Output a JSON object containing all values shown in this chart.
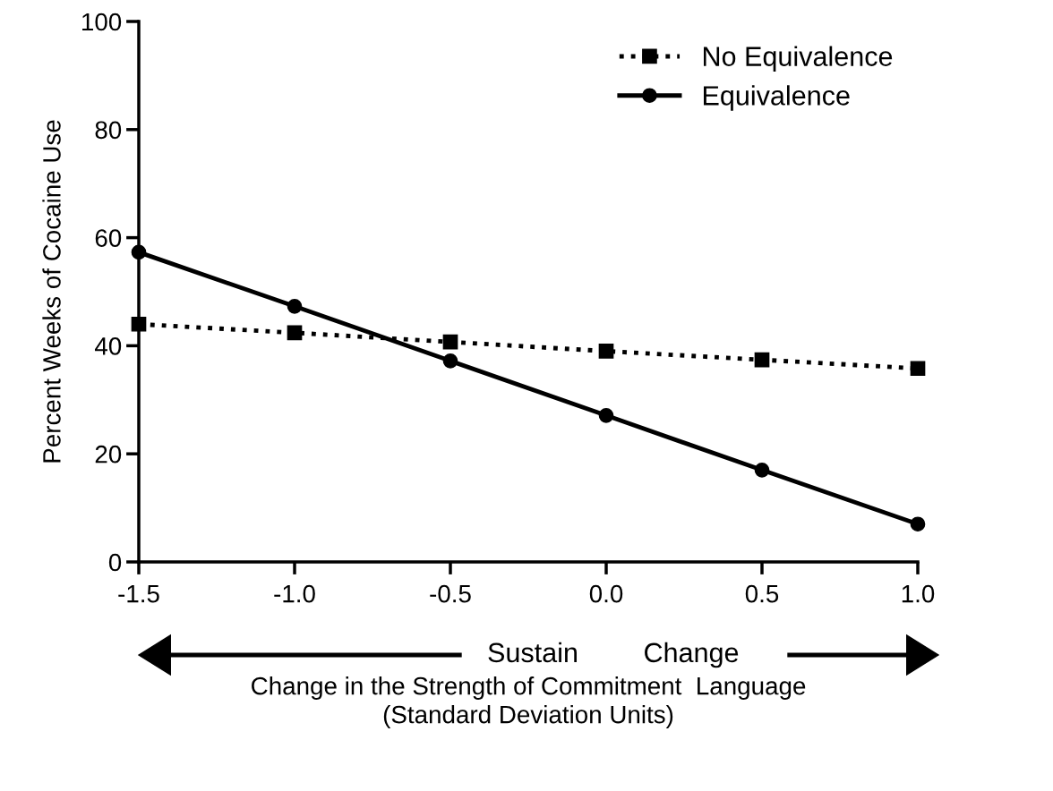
{
  "chart_data": {
    "type": "line",
    "xlabel": "Change in the Strength of Commitment  Language\n(Standard Deviation Units)",
    "ylabel": "Percent Weeks of Cocaine Use",
    "x": [
      -1.5,
      -1.0,
      -0.5,
      0.0,
      0.5,
      1.0
    ],
    "series": [
      {
        "name": "No Equivalence",
        "color": "#000000",
        "values": [
          44,
          42.4,
          40.7,
          39,
          37.4,
          35.8
        ],
        "marker": "square",
        "line_style": "dotted"
      },
      {
        "name": "Equivalence",
        "color": "#000000",
        "values": [
          57.3,
          47.3,
          37.2,
          27.1,
          17,
          7
        ],
        "marker": "circle",
        "line_style": "solid"
      }
    ],
    "xlim": [
      -1.5,
      1.0
    ],
    "xticks": [
      {
        "value": -1.5,
        "label": "-1.5"
      },
      {
        "value": -1.0,
        "label": "-1.0"
      },
      {
        "value": -0.5,
        "label": "-0.5"
      },
      {
        "value": 0.0,
        "label": "0.0"
      },
      {
        "value": 0.5,
        "label": "0.5"
      },
      {
        "value": 1.0,
        "label": "1.0"
      }
    ],
    "ylim": [
      0,
      100
    ],
    "yticks": [
      0,
      20,
      40,
      60,
      80,
      100
    ],
    "annotations": [
      "Sustain",
      "Change"
    ],
    "grid": false,
    "legend": "top right"
  }
}
